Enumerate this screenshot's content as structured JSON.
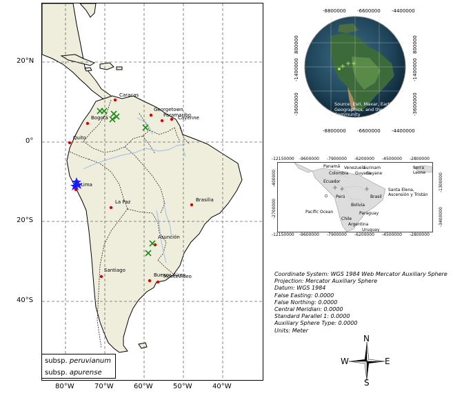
{
  "main_map": {
    "lat_ticks": [
      "20°N",
      "0°",
      "20°S",
      "40°S"
    ],
    "lon_ticks": [
      "80°W",
      "70°W",
      "60°W",
      "50°W",
      "40°W"
    ],
    "cities": [
      {
        "name": "Caracas"
      },
      {
        "name": "Georgetown"
      },
      {
        "name": "Paramaribo"
      },
      {
        "name": "Cayenne"
      },
      {
        "name": "Bogotá"
      },
      {
        "name": "Quito"
      },
      {
        "name": "Lima"
      },
      {
        "name": "La Paz"
      },
      {
        "name": "Brasilia"
      },
      {
        "name": "Asunción"
      },
      {
        "name": "Santiago"
      },
      {
        "name": "Buenos Aires"
      },
      {
        "name": "Montevideo"
      }
    ],
    "legend": {
      "items": [
        {
          "prefix": "subsp. ",
          "taxon": "peruvianum",
          "marker": "blue-star",
          "color": "#1a1aff"
        },
        {
          "prefix": "subsp. ",
          "taxon": "apurense",
          "marker": "green-x",
          "color": "#1a8a1a"
        }
      ]
    },
    "colors": {
      "land": "#efeddc",
      "sea": "#ffffff",
      "rivers": "#a9c6e4",
      "capitals": "#e00000"
    }
  },
  "globe_inset": {
    "top_ticks": [
      "-8800000",
      "-6600000",
      "-4400000"
    ],
    "bottom_ticks": [
      "-8800000",
      "-6600000",
      "-4400000"
    ],
    "left_ticks": [
      "800000",
      "-1400000",
      "-3600000"
    ],
    "right_ticks": [
      "800000",
      "-1400000",
      "-3600000"
    ],
    "credit": "Source: Esri, Maxar, Earthstar Geographics, and the GIS User Community"
  },
  "projected_inset": {
    "top_ticks": [
      "-12150000",
      "-9600000",
      "-7900000",
      "-6200000",
      "-4500000",
      "-2800000"
    ],
    "bottom_ticks": [
      "-12150000",
      "-9600000",
      "-7900000",
      "-6200000",
      "-4500000",
      "-2800000"
    ],
    "left_ticks": [
      "-400000",
      "-2700000"
    ],
    "right_ticks": [
      "-1300000",
      "-3400000"
    ],
    "labels": [
      "Panamá",
      "Venezuela",
      "Surinam",
      "Colombia",
      "Guyana",
      "Guyane",
      "Ecuador",
      "Perú",
      "Brasil",
      "Bolivia",
      "Paraguay",
      "Chile",
      "Argentina",
      "Uruguay",
      "Pacific Ocean",
      "Santa Elena, Ascensión y Tristán",
      "Serra Leone"
    ]
  },
  "projection_info": {
    "lines": [
      "Coordinate System: WGS 1984 Web Mercator Auxiliary Sphere",
      "Projection: Mercator Auxiliary Sphere",
      "Datum: WGS 1984",
      "False Easting: 0.0000",
      "False Northing: 0.0000",
      "Central Meridian: 0.0000",
      "Standard Parallel 1: 0.0000",
      "Auxiliary Sphere Type: 0.0000",
      "Units: Meter"
    ]
  },
  "north_arrow": {
    "n": "N",
    "s": "S",
    "e": "E",
    "w": "W"
  }
}
